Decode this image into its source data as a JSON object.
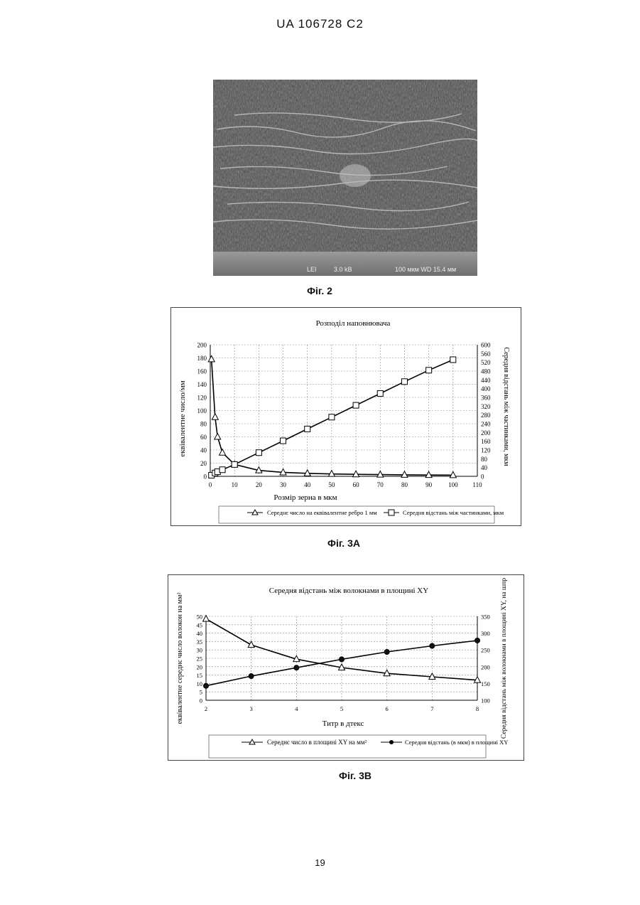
{
  "header": {
    "text": "UA   106728   C2"
  },
  "figure2": {
    "caption": "Фіг. 2",
    "sem_label_left": "LEI",
    "sem_label_kv": "3.0 kB",
    "sem_label_scale": "100 мкм WD 15.4 мм"
  },
  "figure3a": {
    "caption": "Фіг. 3А",
    "chart_data": {
      "type": "line",
      "title": "Розподіл наповнювача",
      "xlabel": "Розмір зерна в мкм",
      "ylabel_left": "еквівалентне число/мм",
      "ylabel_right": "Середня відстань між частинками, мкм",
      "xlim": [
        0,
        110
      ],
      "ylim_left": [
        0,
        200
      ],
      "ylim_right": [
        0,
        600
      ],
      "x_ticks": [
        0,
        10,
        20,
        30,
        40,
        50,
        60,
        70,
        80,
        90,
        100,
        110
      ],
      "y_ticks_left": [
        0,
        20,
        40,
        60,
        80,
        100,
        120,
        140,
        160,
        180,
        200
      ],
      "y_ticks_right": [
        0,
        40,
        80,
        120,
        160,
        200,
        240,
        280,
        320,
        360,
        400,
        440,
        480,
        520,
        560,
        600
      ],
      "grid": true,
      "legend": "bottom",
      "series": [
        {
          "name": "Середнє число на еквівалентне ребро 1 мм",
          "axis": "left",
          "marker": "triangle",
          "x": [
            0.5,
            2,
            3,
            5,
            10,
            20,
            30,
            40,
            50,
            60,
            70,
            80,
            90,
            100
          ],
          "y": [
            178,
            90,
            60,
            36,
            18,
            9,
            6,
            4.5,
            3.6,
            3,
            2.6,
            2.3,
            2,
            1.8
          ]
        },
        {
          "name": "Середня відстань між частинками, мкм",
          "axis": "right",
          "marker": "square",
          "x": [
            0.5,
            2,
            3,
            5,
            10,
            20,
            30,
            40,
            50,
            60,
            70,
            80,
            90,
            100
          ],
          "y": [
            5,
            15,
            21,
            30,
            54,
            108,
            162,
            216,
            270,
            324,
            378,
            432,
            484,
            532
          ]
        }
      ]
    }
  },
  "figure3b": {
    "caption": "Фіг. 3В",
    "chart_data": {
      "type": "line",
      "title": "Середня відстань між волокнами в площині XY",
      "xlabel": "Титр в дтекс",
      "ylabel_left": "еквівалентне середнє число волокон на мм²",
      "ylabel_right": "Середня відстань між волокнами в площині XY, на шпр",
      "xlim": [
        2,
        8
      ],
      "ylim_left": [
        0,
        50
      ],
      "ylim_right": [
        100,
        350
      ],
      "x_ticks": [
        2,
        3,
        4,
        5,
        6,
        7,
        8
      ],
      "y_ticks_left": [
        0,
        5,
        10,
        15,
        20,
        25,
        30,
        35,
        40,
        45,
        50
      ],
      "y_ticks_right": [
        100,
        150,
        200,
        250,
        300,
        350
      ],
      "grid": true,
      "legend": "bottom",
      "series": [
        {
          "name": "Середнє число в площині XY на мм²",
          "axis": "left",
          "marker": "triangle",
          "x": [
            2,
            3,
            4,
            5,
            6,
            7,
            8
          ],
          "y": [
            48.5,
            33,
            24.5,
            19.5,
            16,
            14,
            12
          ]
        },
        {
          "name": "Середня відстань (в мкм) в площині XY",
          "axis": "right",
          "marker": "circle",
          "x": [
            2,
            3,
            4,
            5,
            6,
            7,
            8
          ],
          "y": [
            143,
            172,
            197,
            222,
            244,
            262,
            278
          ]
        }
      ]
    }
  },
  "footer": {
    "page_number": "19"
  }
}
